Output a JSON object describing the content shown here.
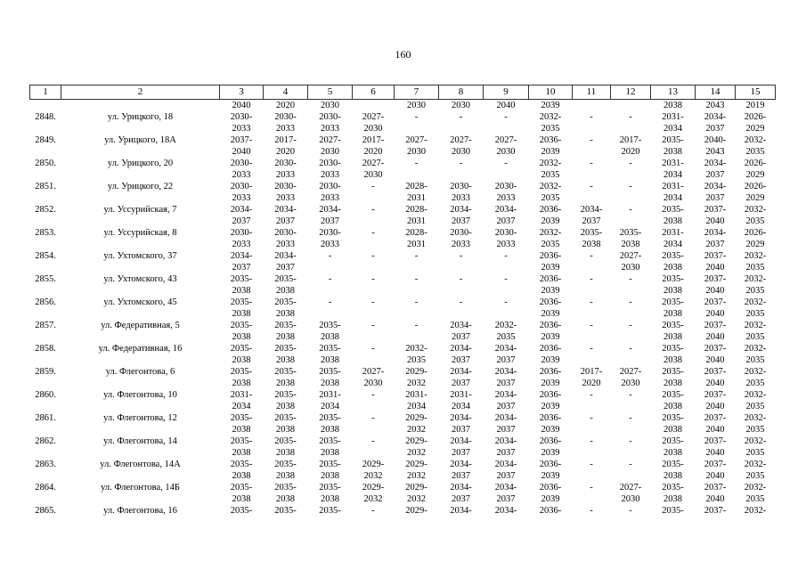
{
  "page_number": "160",
  "colors": {
    "text": "#000000",
    "border": "#333333",
    "background": "#ffffff"
  },
  "table": {
    "column_headers": [
      "1",
      "2",
      "3",
      "4",
      "5",
      "6",
      "7",
      "8",
      "9",
      "10",
      "11",
      "12",
      "13",
      "14",
      "15"
    ],
    "carryover_cells": [
      "2040",
      "2020",
      "2030",
      "",
      "2030",
      "2030",
      "2040",
      "2039",
      "",
      "",
      "2038",
      "2043",
      "2019"
    ],
    "rows": [
      {
        "num": "2848.",
        "address": "ул. Урицкого, 18",
        "years": [
          "2030-2033",
          "2030-2033",
          "2030-2033",
          "2027-2030",
          "-",
          "-",
          "-",
          "2032-2035",
          "-",
          "-",
          "2031-2034",
          "2034-2037",
          "2026-2029"
        ]
      },
      {
        "num": "2849.",
        "address": "ул. Урицкого, 18А",
        "years": [
          "2037-2040",
          "2017-2020",
          "2027-2030",
          "2017-2020",
          "2027-2030",
          "2027-2030",
          "2027-2030",
          "2036-2039",
          "-",
          "2017-2020",
          "2035-2038",
          "2040-2043",
          "2032-2035"
        ]
      },
      {
        "num": "2850.",
        "address": "ул. Урицкого, 20",
        "years": [
          "2030-2033",
          "2030-2033",
          "2030-2033",
          "2027-2030",
          "-",
          "-",
          "-",
          "2032-2035",
          "-",
          "-",
          "2031-2034",
          "2034-2037",
          "2026-2029"
        ]
      },
      {
        "num": "2851.",
        "address": "ул. Урицкого, 22",
        "years": [
          "2030-2033",
          "2030-2033",
          "2030-2033",
          "-",
          "2028-2031",
          "2030-2033",
          "2030-2033",
          "2032-2035",
          "-",
          "-",
          "2031-2034",
          "2034-2037",
          "2026-2029"
        ]
      },
      {
        "num": "2852.",
        "address": "ул. Уссурийская, 7",
        "years": [
          "2034-2037",
          "2034-2037",
          "2034-2037",
          "-",
          "2028-2031",
          "2034-2037",
          "2034-2037",
          "2036-2039",
          "2034-2037",
          "-",
          "2035-2038",
          "2037-2040",
          "2032-2035"
        ]
      },
      {
        "num": "2853.",
        "address": "ул. Уссурийская, 8",
        "years": [
          "2030-2033",
          "2030-2033",
          "2030-2033",
          "-",
          "2028-2031",
          "2030-2033",
          "2030-2033",
          "2032-2035",
          "2035-2038",
          "2035-2038",
          "2031-2034",
          "2034-2037",
          "2026-2029"
        ]
      },
      {
        "num": "2854.",
        "address": "ул. Ухтомского, 37",
        "years": [
          "2034-2037",
          "2034-2037",
          "-",
          "-",
          "-",
          "-",
          "-",
          "2036-2039",
          "-",
          "2027-2030",
          "2035-2038",
          "2037-2040",
          "2032-2035"
        ]
      },
      {
        "num": "2855.",
        "address": "ул. Ухтомского, 43",
        "years": [
          "2035-2038",
          "2035-2038",
          "-",
          "-",
          "-",
          "-",
          "-",
          "2036-2039",
          "-",
          "-",
          "2035-2038",
          "2037-2040",
          "2032-2035"
        ]
      },
      {
        "num": "2856.",
        "address": "ул. Ухтомского, 45",
        "years": [
          "2035-2038",
          "2035-2038",
          "-",
          "-",
          "-",
          "-",
          "-",
          "2036-2039",
          "-",
          "-",
          "2035-2038",
          "2037-2040",
          "2032-2035"
        ]
      },
      {
        "num": "2857.",
        "address": "ул. Федеративная, 5",
        "years": [
          "2035-2038",
          "2035-2038",
          "2035-2038",
          "-",
          "-",
          "2034-2037",
          "2032-2035",
          "2036-2039",
          "-",
          "-",
          "2035-2038",
          "2037-2040",
          "2032-2035"
        ]
      },
      {
        "num": "2858.",
        "address": "ул. Федеративная, 16",
        "years": [
          "2035-2038",
          "2035-2038",
          "2035-2038",
          "-",
          "2032-2035",
          "2034-2037",
          "2034-2037",
          "2036-2039",
          "-",
          "-",
          "2035-2038",
          "2037-2040",
          "2032-2035"
        ]
      },
      {
        "num": "2859.",
        "address": "ул. Флегонтова, 6",
        "years": [
          "2035-2038",
          "2035-2038",
          "2035-2038",
          "2027-2030",
          "2029-2032",
          "2034-2037",
          "2034-2037",
          "2036-2039",
          "2017-2020",
          "2027-2030",
          "2035-2038",
          "2037-2040",
          "2032-2035"
        ]
      },
      {
        "num": "2860.",
        "address": "ул. Флегонтова, 10",
        "years": [
          "2031-2034",
          "2035-2038",
          "2031-2034",
          "-",
          "2031-2034",
          "2031-2034",
          "2034-2037",
          "2036-2039",
          "-",
          "-",
          "2035-2038",
          "2037-2040",
          "2032-2035"
        ]
      },
      {
        "num": "2861.",
        "address": "ул. Флегонтова, 12",
        "years": [
          "2035-2038",
          "2035-2038",
          "2035-2038",
          "-",
          "2029-2032",
          "2034-2037",
          "2034-2037",
          "2036-2039",
          "-",
          "-",
          "2035-2038",
          "2037-2040",
          "2032-2035"
        ]
      },
      {
        "num": "2862.",
        "address": "ул. Флегонтова, 14",
        "years": [
          "2035-2038",
          "2035-2038",
          "2035-2038",
          "-",
          "2029-2032",
          "2034-2037",
          "2034-2037",
          "2036-2039",
          "-",
          "-",
          "2035-2038",
          "2037-2040",
          "2032-2035"
        ]
      },
      {
        "num": "2863.",
        "address": "ул. Флегонтова, 14А",
        "years": [
          "2035-2038",
          "2035-2038",
          "2035-2038",
          "2029-2032",
          "2029-2032",
          "2034-2037",
          "2034-2037",
          "2036-2039",
          "-",
          "-",
          "2035-2038",
          "2037-2040",
          "2032-2035"
        ]
      },
      {
        "num": "2864.",
        "address": "ул. Флегонтова, 14Б",
        "years": [
          "2035-2038",
          "2035-2038",
          "2035-2038",
          "2029-2032",
          "2029-2032",
          "2034-2037",
          "2034-2037",
          "2036-2039",
          "-",
          "2027-2030",
          "2035-2038",
          "2037-2040",
          "2032-2035"
        ]
      },
      {
        "num": "2865.",
        "address": "ул. Флегонтова, 16",
        "years": [
          "2035-",
          "2035-",
          "2035-",
          "-",
          "2029-",
          "2034-",
          "2034-",
          "2036-",
          "-",
          "-",
          "2035-",
          "2037-",
          "2032-"
        ],
        "partial": true
      }
    ]
  }
}
